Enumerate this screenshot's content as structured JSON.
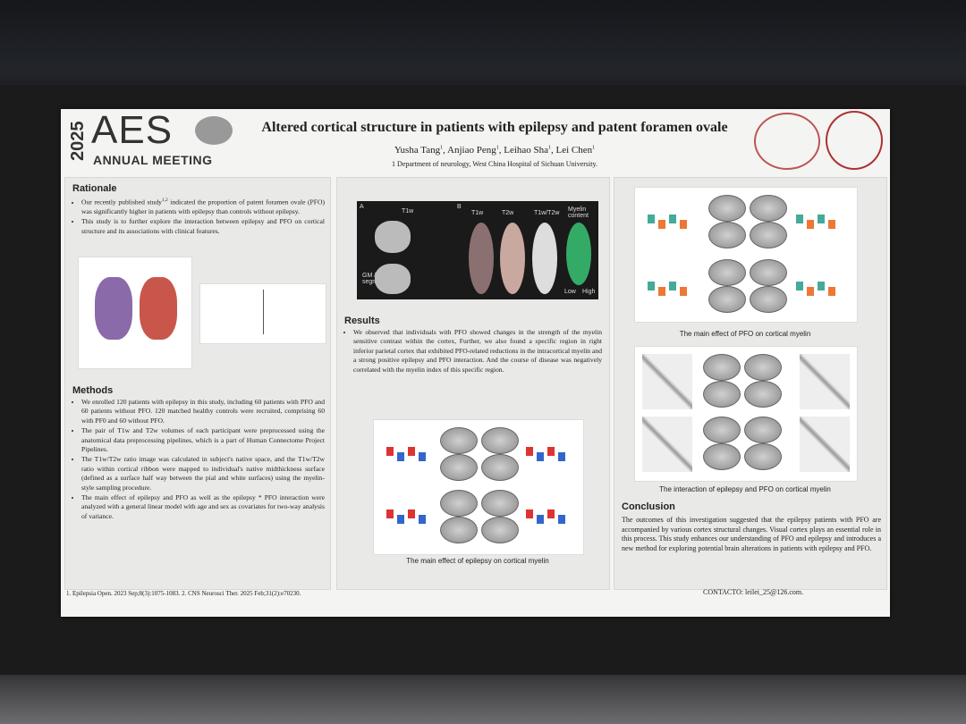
{
  "header": {
    "year": "2025",
    "logo": "AES",
    "meeting": "ANNUAL MEETING",
    "title": "Altered cortical structure in patients with epilepsy and patent foramen ovale",
    "authors": [
      {
        "name": "Yusha Tang",
        "sup": "1"
      },
      {
        "name": "Anjiao Peng",
        "sup": "1"
      },
      {
        "name": "Leihao Sha",
        "sup": "1"
      },
      {
        "name": "Lei Chen",
        "sup": "1"
      }
    ],
    "author_separator": ", ",
    "affiliation": "1 Department of neurology, West China Hospital of Sichuan University."
  },
  "rationale": {
    "heading": "Rationale",
    "bullets": [
      {
        "before": "Our recently published study",
        "sup": "1,2",
        "after": " indicated the proportion of patent foramen ovale (PFO) was significantly higher in patients with epilepsy than controls without epilepsy."
      },
      {
        "before": "This study is to further explore the interaction between epilepsy and PFO on cortical structure and its associations with clinical features.",
        "sup": null,
        "after": null
      }
    ]
  },
  "methods": {
    "heading": "Methods",
    "bullets": [
      "We enrolled 120 patients with epilepsy in this study, including 60 patients with PFO and 60 patients without PFO. 120 matched healthy controls were recruited, comprising 60 with PF0 and 60 without PFO.",
      "The pair of T1w and T2w volumes of each participant were preprocessed using the anatomical data preprocessing pipelines, which is a part of Human Connectome Project Pipelines.",
      "The T1w/T2w ratio image was calculated in subject's native space, and the T1w/T2w ratio within cortical ribbon were mapped to individual's native midthickness surface (defined as a surface half way between the pial and white surfaces) using the myelin-style sampling procedure.",
      "The main effect of epilepsy and PFO as well as the epilepsy * PFO interaction were analyzed with a general linear model with age and sex as covariates for two-way analysis of variance."
    ]
  },
  "figure_mri": {
    "panels": [
      "A",
      "B"
    ],
    "labels": [
      "T1w",
      "T1w",
      "T2w",
      "T1w/T2w",
      "Myelin content"
    ],
    "segmentation": "GM / WM segmentation",
    "scale": [
      "Low",
      "High"
    ]
  },
  "results": {
    "heading": "Results",
    "text": "We observed that individuals with PFO showed changes in the strength of the myelin sensitive contrast within the cortex, Further, we also found a specific region in right inferior parietal cortex that exhibited PFO-related reductions in the intracortical myelin and a strong positive epilepsy and PFO interaction. And the course of disease was negatively correlated with the myelin index of this specific region.",
    "caption": "The main effect of epilepsy on cortical myelin"
  },
  "right": {
    "caption_pfo": "The main effect of PFO on cortical myelin",
    "caption_interaction": "The interaction of epilepsy and PFO on cortical myelin"
  },
  "conclusion": {
    "heading": "Conclusion",
    "text": "The outcomes of this investigation suggested that the epilepsy patients with PFO are accompanied by various cortex structural changes. Visual cortex plays an essential role in this process. This study enhances our understanding of PFO and epilepsy and introduces a new method for exploring potential brain alterations in patients with epilepsy and PFO."
  },
  "footer": {
    "references": "1. Epilepsia Open. 2023 Sep;8(3):1075-1083.  2. CNS Neurosci Ther. 2025 Feb;31(2):e70230.",
    "contact": "CONTACTO: leilei_25@126.com."
  }
}
